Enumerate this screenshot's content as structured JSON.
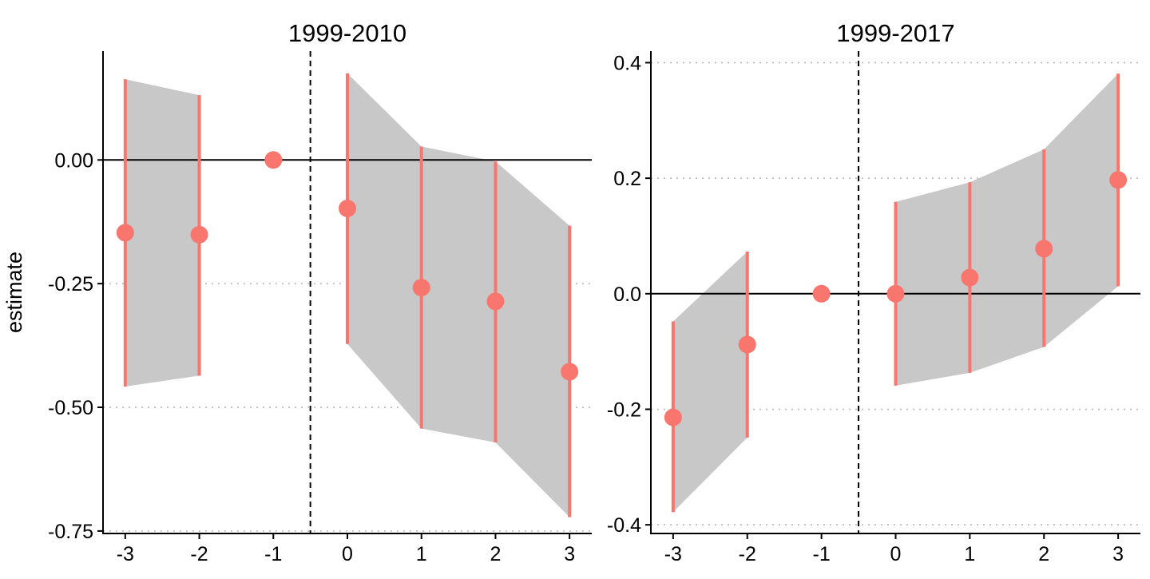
{
  "ylabel": "estimate",
  "colors": {
    "point": "#F8766D",
    "ribbon": "#C8C8C8",
    "axis": "#000000",
    "grid": "#BEBEBE",
    "zero_line": "#000000",
    "vline": "#000000"
  },
  "chart_data": [
    {
      "type": "scatter",
      "title": "1999-2010",
      "xlabel": "",
      "ylabel": "estimate",
      "x": [
        -3,
        -2,
        -1,
        0,
        1,
        2,
        3
      ],
      "xticks": [
        -3,
        -2,
        -1,
        0,
        1,
        2,
        3
      ],
      "xlim": [
        -3.3,
        3.3
      ],
      "ylim": [
        -0.755,
        0.22
      ],
      "yticks": [
        0.0,
        -0.25,
        -0.5,
        -0.75
      ],
      "ytick_labels": [
        "0.00",
        "-0.25",
        "-0.50",
        "-0.75"
      ],
      "grid_y": [
        -0.25,
        -0.5,
        -0.75
      ],
      "reference_hline": 0,
      "reference_vline": -0.5,
      "series": [
        {
          "estimate": [
            -0.147,
            -0.151,
            0.0,
            -0.098,
            -0.258,
            -0.286,
            -0.428
          ],
          "conf_low": [
            -0.458,
            -0.436,
            null,
            -0.372,
            -0.543,
            -0.571,
            -0.722
          ],
          "conf_high": [
            0.163,
            0.131,
            null,
            0.175,
            0.027,
            -0.003,
            -0.133
          ]
        }
      ],
      "ribbon_segments": [
        [
          -3,
          -2
        ],
        [
          0,
          3
        ]
      ],
      "grid": true,
      "legend": "none"
    },
    {
      "type": "scatter",
      "title": "1999-2017",
      "xlabel": "",
      "ylabel": "",
      "x": [
        -3,
        -2,
        -1,
        0,
        1,
        2,
        3
      ],
      "xticks": [
        -3,
        -2,
        -1,
        0,
        1,
        2,
        3
      ],
      "xlim": [
        -3.3,
        3.3
      ],
      "ylim": [
        -0.415,
        0.42
      ],
      "yticks": [
        0.4,
        0.2,
        0.0,
        -0.2,
        -0.4
      ],
      "ytick_labels": [
        "0.4",
        "0.2",
        "0.0",
        "-0.2",
        "-0.4"
      ],
      "grid_y": [
        0.4,
        0.2,
        -0.2,
        -0.4
      ],
      "reference_hline": 0,
      "reference_vline": -0.5,
      "series": [
        {
          "estimate": [
            -0.214,
            -0.088,
            0.0,
            0.0,
            0.028,
            0.078,
            0.197
          ],
          "conf_low": [
            -0.378,
            -0.249,
            null,
            -0.159,
            -0.137,
            -0.092,
            0.013
          ],
          "conf_high": [
            -0.048,
            0.073,
            null,
            0.159,
            0.193,
            0.25,
            0.381
          ]
        }
      ],
      "ribbon_segments": [
        [
          -3,
          -2
        ],
        [
          0,
          3
        ]
      ],
      "grid": true,
      "legend": "none"
    }
  ]
}
